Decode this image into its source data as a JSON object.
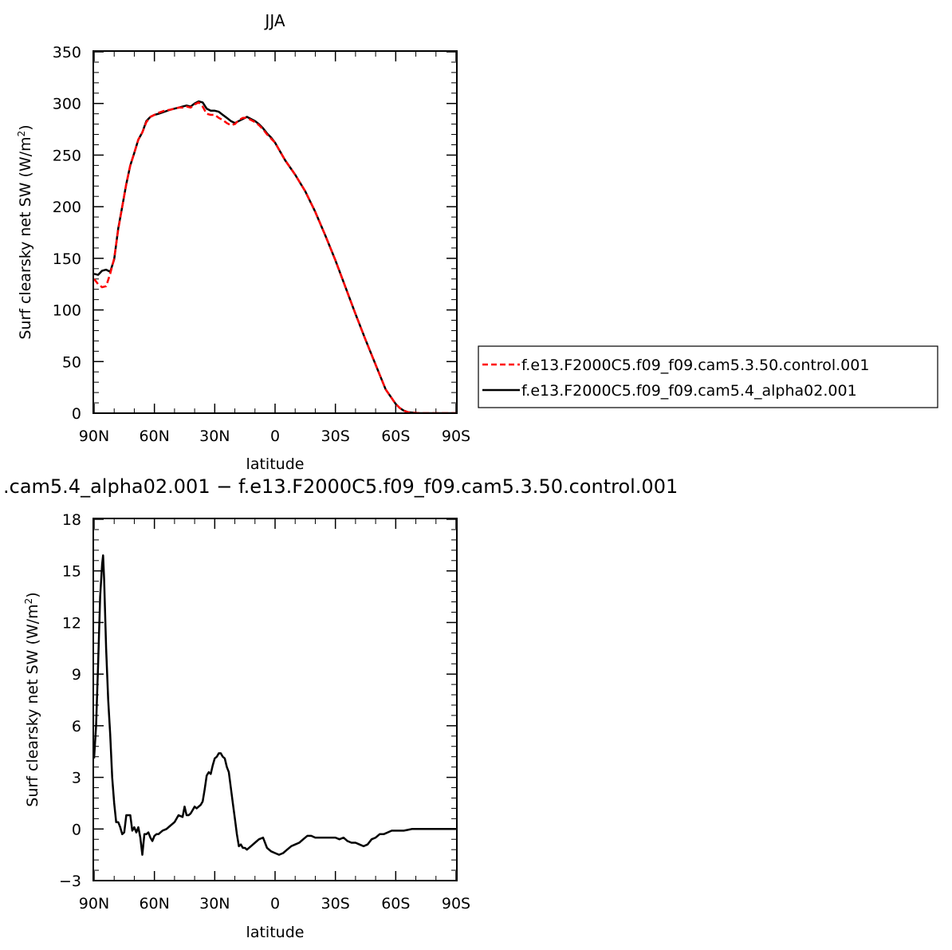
{
  "chart_data": [
    {
      "type": "line",
      "title": "JJA",
      "xlabel": "latitude",
      "ylabel": "Surf clearsky net SW (W/m",
      "ylabel_sup": "2",
      "ylabel_tail": ")",
      "xlim": [
        90,
        -90
      ],
      "ylim": [
        0,
        350
      ],
      "x_ticks": [
        90,
        60,
        30,
        0,
        -30,
        -60,
        -90
      ],
      "x_tick_labels": [
        "90N",
        "60N",
        "30N",
        "0",
        "30S",
        "60S",
        "90S"
      ],
      "y_ticks": [
        0,
        50,
        100,
        150,
        200,
        250,
        300,
        350
      ],
      "y_tick_labels": [
        "0",
        "50",
        "100",
        "150",
        "200",
        "250",
        "300",
        "350"
      ],
      "legend": "right",
      "series": [
        {
          "name": "f.e13.F2000C5.f09_f09.cam5.3.50.control.001",
          "color": "#ff0000",
          "dash": "dashed",
          "x": [
            90,
            88,
            86,
            84,
            82,
            80,
            78,
            76,
            74,
            72,
            70,
            68,
            66,
            64,
            62,
            60,
            58,
            55,
            52,
            50,
            48,
            46,
            44,
            42,
            40,
            38,
            36,
            34,
            32,
            30,
            28,
            26,
            24,
            22,
            20,
            18,
            16,
            14,
            12,
            10,
            8,
            6,
            4,
            2,
            0,
            -5,
            -10,
            -15,
            -20,
            -25,
            -30,
            -35,
            -40,
            -45,
            -50,
            -55,
            -60,
            -62,
            -64,
            -66,
            -68,
            -70,
            -72,
            -75,
            -80,
            -85,
            -90
          ],
          "y": [
            130,
            125,
            122,
            123,
            135,
            150,
            178,
            200,
            222,
            240,
            252,
            265,
            272,
            282,
            287,
            289,
            291,
            293,
            294,
            295,
            296,
            296,
            297,
            296,
            299,
            301,
            297,
            290,
            289,
            289,
            286,
            284,
            281,
            279,
            280,
            284,
            286,
            286,
            284,
            282,
            279,
            275,
            270,
            266,
            262,
            245,
            231,
            215,
            195,
            172,
            148,
            122,
            96,
            71,
            47,
            23,
            9,
            5,
            2.5,
            1,
            0.6,
            0.3,
            0,
            0,
            0,
            0,
            0
          ]
        },
        {
          "name": "f.e13.F2000C5.f09_f09.cam5.4_alpha02.001",
          "color": "#000000",
          "dash": "solid",
          "x": [
            90,
            88,
            86,
            84,
            82,
            80,
            78,
            76,
            74,
            72,
            70,
            68,
            66,
            64,
            62,
            60,
            58,
            55,
            52,
            50,
            48,
            46,
            44,
            42,
            40,
            38,
            36,
            34,
            32,
            30,
            28,
            26,
            24,
            22,
            20,
            18,
            16,
            14,
            12,
            10,
            8,
            6,
            4,
            2,
            0,
            -5,
            -10,
            -15,
            -20,
            -25,
            -30,
            -35,
            -40,
            -45,
            -50,
            -55,
            -60,
            -62,
            -64,
            -66,
            -68,
            -70,
            -72,
            -75,
            -80,
            -85,
            -90
          ],
          "y": [
            135,
            134,
            138,
            139,
            137,
            149,
            179,
            200,
            222,
            240,
            252,
            265,
            272,
            283,
            287,
            289,
            290,
            292,
            294,
            295,
            296,
            297,
            298,
            297,
            300,
            302,
            301,
            295,
            293,
            293,
            292,
            289,
            286,
            283,
            281,
            283,
            285,
            287,
            285,
            283,
            280,
            276,
            271,
            267,
            262,
            245,
            231,
            215,
            195,
            172,
            148,
            122,
            96,
            71,
            47,
            23,
            9,
            5,
            2.5,
            1,
            0.6,
            0.3,
            0,
            0,
            0,
            0,
            0
          ]
        }
      ]
    },
    {
      "type": "line",
      "title": ".cam5.4_alpha02.001 − f.e13.F2000C5.f09_f09.cam5.3.50.control.001",
      "xlabel": "latitude",
      "ylabel": "Surf clearsky net SW (W/m",
      "ylabel_sup": "2",
      "ylabel_tail": ")",
      "xlim": [
        90,
        -90
      ],
      "ylim": [
        -3,
        18
      ],
      "x_ticks": [
        90,
        60,
        30,
        0,
        -30,
        -60,
        -90
      ],
      "x_tick_labels": [
        "90N",
        "60N",
        "30N",
        "0",
        "30S",
        "60S",
        "90S"
      ],
      "y_ticks": [
        -3,
        0,
        3,
        6,
        9,
        12,
        15,
        18
      ],
      "y_tick_labels": [
        "−3",
        "0",
        "3",
        "6",
        "9",
        "12",
        "15",
        "18"
      ],
      "series": [
        {
          "color": "#000000",
          "dash": "solid",
          "x": [
            90,
            89,
            88,
            87,
            86,
            85.5,
            85,
            84,
            83,
            82,
            81,
            80,
            79,
            78,
            77,
            76,
            75,
            74,
            73,
            72,
            71,
            70,
            69,
            68,
            67,
            66,
            65,
            64,
            63,
            62,
            61,
            60,
            59,
            58,
            56,
            54,
            52,
            50,
            48,
            46,
            45,
            44,
            43,
            42,
            41,
            40,
            39,
            38,
            37,
            36,
            35,
            34,
            33,
            32,
            31,
            30,
            29,
            28,
            27,
            26,
            25,
            24,
            23,
            22,
            21,
            20,
            19,
            18,
            17,
            16,
            15,
            14,
            12,
            10,
            8,
            6,
            4,
            2,
            0,
            -2,
            -4,
            -6,
            -8,
            -10,
            -12,
            -14,
            -16,
            -18,
            -20,
            -22,
            -24,
            -26,
            -28,
            -30,
            -32,
            -34,
            -36,
            -38,
            -40,
            -42,
            -44,
            -46,
            -48,
            -50,
            -52,
            -54,
            -56,
            -58,
            -60,
            -62,
            -64,
            -66,
            -68,
            -70,
            -75,
            -80,
            -85,
            -90
          ],
          "y": [
            4.1,
            6,
            9.5,
            13.5,
            15.4,
            15.9,
            14.5,
            10.5,
            7.5,
            5.5,
            3,
            1.5,
            0.4,
            0.4,
            0.1,
            -0.3,
            -0.2,
            0.8,
            0.8,
            0.8,
            -0.1,
            0.1,
            -0.2,
            0.1,
            -0.5,
            -1.5,
            -0.3,
            -0.3,
            -0.2,
            -0.5,
            -0.7,
            -0.4,
            -0.3,
            -0.3,
            -0.1,
            0,
            0.2,
            0.4,
            0.8,
            0.7,
            1.3,
            0.8,
            0.8,
            0.9,
            1.1,
            1.3,
            1.2,
            1.3,
            1.4,
            1.6,
            2.3,
            3.1,
            3.3,
            3.2,
            3.7,
            4.1,
            4.2,
            4.4,
            4.4,
            4.2,
            4.1,
            3.6,
            3.3,
            2.4,
            1.5,
            0.6,
            -0.3,
            -1.0,
            -0.9,
            -1.1,
            -1.1,
            -1.2,
            -1.0,
            -0.8,
            -0.6,
            -0.5,
            -1.1,
            -1.3,
            -1.4,
            -1.5,
            -1.4,
            -1.2,
            -1.0,
            -0.9,
            -0.8,
            -0.6,
            -0.4,
            -0.4,
            -0.5,
            -0.5,
            -0.5,
            -0.5,
            -0.5,
            -0.5,
            -0.6,
            -0.5,
            -0.7,
            -0.8,
            -0.8,
            -0.9,
            -1.0,
            -0.9,
            -0.6,
            -0.5,
            -0.3,
            -0.3,
            -0.2,
            -0.1,
            -0.1,
            -0.1,
            -0.1,
            -0.05,
            0,
            0,
            0,
            0,
            0,
            0
          ]
        }
      ]
    }
  ]
}
